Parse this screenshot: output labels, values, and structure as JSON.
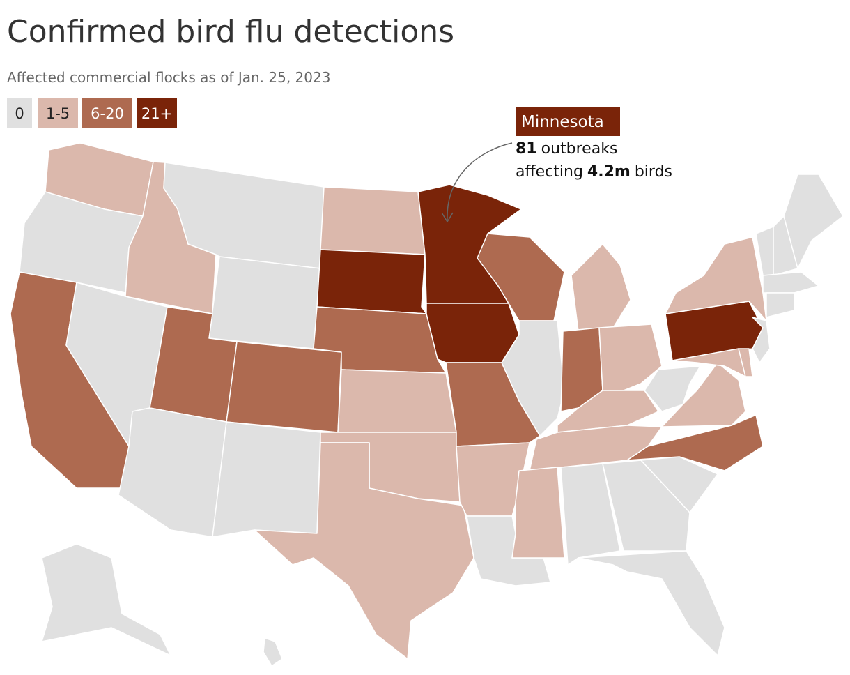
{
  "title": "Confirmed bird flu detections",
  "subtitle": "Affected commercial flocks as of Jan. 25, 2023",
  "legend": [
    {
      "label": "0",
      "color": "#e0e0e0",
      "text_color": "#222222"
    },
    {
      "label": "1-5",
      "color": "#dbb8ac",
      "text_color": "#222222"
    },
    {
      "label": "6-20",
      "color": "#ae6a50",
      "text_color": "#ffffff"
    },
    {
      "label": "21+",
      "color": "#7a2409",
      "text_color": "#ffffff"
    }
  ],
  "states": [
    1,
    0,
    2,
    1,
    0,
    0,
    0,
    2,
    0,
    2,
    0,
    1,
    3,
    2,
    1,
    1,
    1,
    3,
    3,
    2,
    1,
    0,
    2,
    0,
    1,
    2,
    1,
    1,
    1,
    1,
    0,
    0,
    0,
    0,
    2,
    1,
    0,
    3,
    1,
    1,
    1,
    0,
    0,
    0,
    0,
    0,
    0,
    0,
    0
  ],
  "annotation": {
    "state": "Minnesota",
    "outbreaks": 81,
    "outbreaks_text": "outbreaks",
    "birds_prefix": "affecting",
    "birds": "4.2m",
    "birds_text": "birds"
  }
}
